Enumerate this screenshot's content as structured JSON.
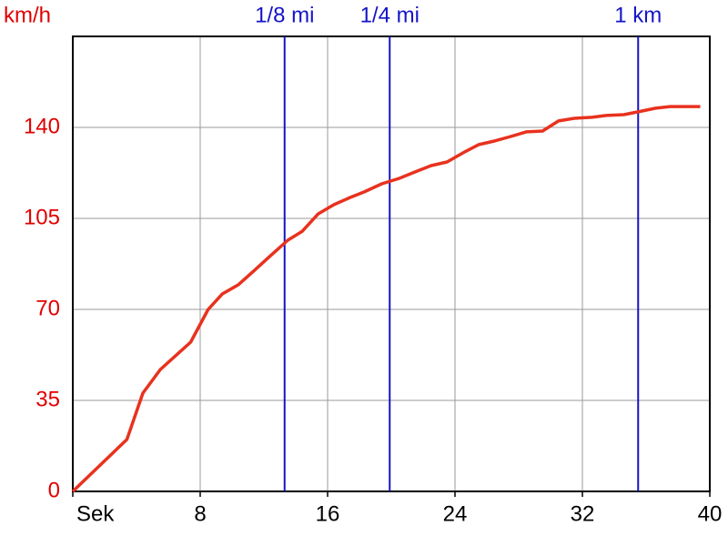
{
  "chart_data": {
    "type": "line",
    "y_label": "km/h",
    "x": [
      0,
      3.4,
      4.4,
      5.5,
      7.4,
      8.5,
      9.4,
      10.4,
      11.4,
      12.3,
      13.5,
      14.4,
      15.4,
      16.4,
      17.4,
      18.3,
      19.4,
      20.5,
      21.5,
      22.5,
      23.5,
      24.5,
      25.5,
      26.5,
      27.5,
      28.5,
      29.5,
      30.5,
      31.5,
      32.6,
      33.5,
      34.6,
      35.5,
      36.6,
      37.5,
      39.4
    ],
    "series": [
      {
        "color": "#e8321e",
        "values": [
          0,
          20,
          37.8,
          46.9,
          57.4,
          70,
          76,
          79.5,
          85,
          90,
          96.6,
          100,
          106.7,
          110.3,
          113,
          115.2,
          118.3,
          120.4,
          122.9,
          125.3,
          126.7,
          130.2,
          133.4,
          134.8,
          136.5,
          138.3,
          138.6,
          142.5,
          143.5,
          143.9,
          144.6,
          144.9,
          146,
          147.4,
          148,
          148
        ]
      }
    ],
    "markers": [
      {
        "label": "1/8 mi",
        "value": 13.3
      },
      {
        "label": "1/4 mi",
        "value": 19.9
      },
      {
        "label": "1 km",
        "value": 35.5
      }
    ],
    "marker_color": "#1414c8",
    "xlim": [
      0,
      40
    ],
    "xticks": [
      {
        "value": 0,
        "label": "Sek"
      },
      8,
      16,
      24,
      32,
      40
    ],
    "ylim": [
      0,
      175
    ],
    "yticks": [
      0,
      35,
      70,
      105,
      140
    ],
    "y_tick_color": "#e00000",
    "grid": true
  }
}
